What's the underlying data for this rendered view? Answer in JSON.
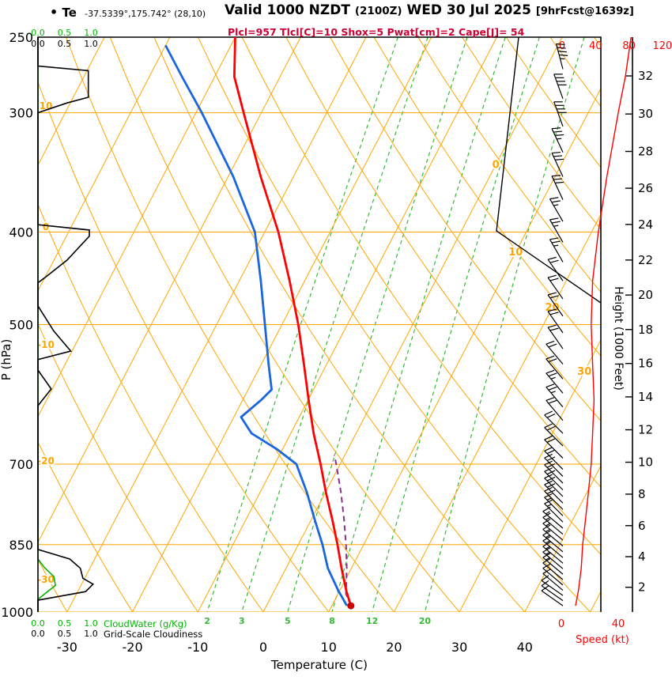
{
  "header": {
    "bullet": "•",
    "station": "Te",
    "coords": "-37.5339°,175.742° (28,10)",
    "valid": "Valid 1000 NZDT",
    "zulu": "(2100Z)",
    "date": "WED 30 Jul 2025",
    "fcst": "[9hrFcst@1639z]",
    "params": "Plcl=957 Tlcl[C]=10 Shox=5 Pwat[cm]=2 Cape[J]= 54"
  },
  "axes": {
    "pressure_title": "P (hPa)",
    "pressure_ticks": [
      250,
      300,
      400,
      500,
      700,
      850,
      1000
    ],
    "temp_title": "Temperature (C)",
    "temp_ticks": [
      -30,
      -20,
      -10,
      0,
      10,
      20,
      30,
      40
    ],
    "height_title": "Height (1000 Feet)",
    "height_ticks": [
      2,
      4,
      6,
      8,
      10,
      12,
      14,
      16,
      18,
      20,
      22,
      24,
      26,
      28,
      30,
      32
    ],
    "speed_title": "Speed (kt)",
    "speed_ticks_bottom": [
      0,
      40
    ],
    "speed_ticks_top": [
      0,
      40,
      80,
      120
    ],
    "cloud_scale": [
      "0.0",
      "0.5",
      "1.0"
    ],
    "cloudwater_title": "CloudWater (g/Kg)",
    "cloudiness_title": "Grid-Scale Cloudiness"
  },
  "grid": {
    "isotherms": {
      "min": -120,
      "max": 60,
      "step": 10,
      "labels": [
        {
          "t": 0,
          "p": 340
        },
        {
          "t": 10,
          "p": 420
        },
        {
          "t": 20,
          "p": 480
        },
        {
          "t": 30,
          "p": 560
        }
      ]
    },
    "dry_adiabats": {
      "min": -40,
      "max": 200,
      "step": 10,
      "labels": [
        -30,
        -20,
        -10,
        0,
        10
      ]
    },
    "mixing_ratio_lines": [
      2,
      3,
      5,
      8,
      12,
      20
    ]
  },
  "colors": {
    "grid_orange": "#ffa500",
    "mixing_green": "#33bb33",
    "cloud_green": "#00b400",
    "temp_red": "#ff0000",
    "dewpoint_blue": "#1a66e0",
    "parcel_purple": "#8b2d8b",
    "params_red": "#cc0033",
    "speed_red": "#ff0000",
    "barb_black": "#000000"
  },
  "chart_data": {
    "type": "line",
    "subtype": "skewt_log_p_sounding",
    "title": "Valid 1000 NZDT (2100Z) WED 30 Jul 2025",
    "location": "Te -37.5339°,175.742° (28,10)",
    "xlabel": "Temperature (C)",
    "ylabel": "P (hPa)",
    "pressure_range_hpa": [
      250,
      1000
    ],
    "temp_axis_range_c": [
      -35,
      45
    ],
    "indices": {
      "Plcl": 957,
      "Tlcl_C": 10,
      "Shox": 5,
      "Pwat_cm": 2,
      "Cape_J": 54
    },
    "temperature_c": [
      [
        985,
        12.9
      ],
      [
        950,
        11.0
      ],
      [
        900,
        8.5
      ],
      [
        850,
        6.0
      ],
      [
        800,
        3.2
      ],
      [
        750,
        0.1
      ],
      [
        700,
        -3.0
      ],
      [
        650,
        -6.5
      ],
      [
        600,
        -9.9
      ],
      [
        550,
        -13.5
      ],
      [
        500,
        -17.5
      ],
      [
        450,
        -22.3
      ],
      [
        400,
        -27.9
      ],
      [
        350,
        -35.0
      ],
      [
        300,
        -42.7
      ],
      [
        275,
        -47.0
      ],
      [
        250,
        -50.0
      ]
    ],
    "dewpoint_c": [
      [
        985,
        12.3
      ],
      [
        950,
        9.8
      ],
      [
        900,
        6.4
      ],
      [
        850,
        3.7
      ],
      [
        800,
        0.5
      ],
      [
        750,
        -2.8
      ],
      [
        700,
        -6.7
      ],
      [
        675,
        -10.9
      ],
      [
        650,
        -16.0
      ],
      [
        625,
        -18.9
      ],
      [
        600,
        -17.2
      ],
      [
        585,
        -16.4
      ],
      [
        550,
        -18.9
      ],
      [
        500,
        -22.6
      ],
      [
        450,
        -26.7
      ],
      [
        400,
        -31.5
      ],
      [
        350,
        -39.2
      ],
      [
        300,
        -49.1
      ],
      [
        275,
        -55.0
      ],
      [
        255,
        -60.0
      ]
    ],
    "parcel_c": [
      [
        985,
        12.9
      ],
      [
        957,
        11.2
      ],
      [
        900,
        9.3
      ],
      [
        850,
        7.3
      ],
      [
        800,
        5.0
      ],
      [
        750,
        2.4
      ],
      [
        700,
        -0.6
      ],
      [
        685,
        -1.6
      ]
    ],
    "surface_point": {
      "p": 985,
      "t": 12.9
    },
    "speed_profile_kt": [
      [
        985,
        10
      ],
      [
        950,
        12
      ],
      [
        900,
        14
      ],
      [
        850,
        15
      ],
      [
        800,
        17
      ],
      [
        750,
        19
      ],
      [
        700,
        21
      ],
      [
        650,
        22
      ],
      [
        600,
        23
      ],
      [
        550,
        22
      ],
      [
        500,
        21
      ],
      [
        450,
        22
      ],
      [
        400,
        26
      ],
      [
        350,
        32
      ],
      [
        300,
        40
      ],
      [
        275,
        45
      ],
      [
        250,
        49
      ]
    ],
    "wind_barbs_p_kt_dir": [
      [
        985,
        10,
        305
      ],
      [
        973,
        10,
        305
      ],
      [
        961,
        11,
        305
      ],
      [
        949,
        12,
        310
      ],
      [
        937,
        12,
        310
      ],
      [
        925,
        12,
        310
      ],
      [
        913,
        13,
        310
      ],
      [
        901,
        13,
        310
      ],
      [
        889,
        14,
        310
      ],
      [
        877,
        14,
        310
      ],
      [
        865,
        14,
        310
      ],
      [
        853,
        15,
        310
      ],
      [
        841,
        15,
        310
      ],
      [
        829,
        16,
        310
      ],
      [
        817,
        16,
        310
      ],
      [
        805,
        17,
        315
      ],
      [
        793,
        17,
        315
      ],
      [
        781,
        18,
        315
      ],
      [
        769,
        18,
        315
      ],
      [
        757,
        19,
        315
      ],
      [
        745,
        19,
        315
      ],
      [
        733,
        20,
        315
      ],
      [
        721,
        20,
        315
      ],
      [
        709,
        21,
        315
      ],
      [
        690,
        21,
        315
      ],
      [
        670,
        22,
        315
      ],
      [
        650,
        22,
        315
      ],
      [
        630,
        22,
        320
      ],
      [
        610,
        23,
        320
      ],
      [
        590,
        23,
        320
      ],
      [
        570,
        22,
        320
      ],
      [
        550,
        22,
        320
      ],
      [
        530,
        22,
        325
      ],
      [
        510,
        21,
        325
      ],
      [
        490,
        21,
        325
      ],
      [
        470,
        21,
        325
      ],
      [
        450,
        22,
        325
      ],
      [
        430,
        24,
        330
      ],
      [
        410,
        25,
        330
      ],
      [
        390,
        27,
        330
      ],
      [
        370,
        30,
        335
      ],
      [
        350,
        32,
        335
      ],
      [
        330,
        35,
        335
      ],
      [
        310,
        38,
        340
      ],
      [
        290,
        42,
        340
      ],
      [
        270,
        45,
        345
      ]
    ],
    "grid_scale_cloudiness": [
      [
        250,
        0
      ],
      [
        268,
        0
      ],
      [
        271,
        0.95
      ],
      [
        289,
        0.95
      ],
      [
        293,
        0.55
      ],
      [
        300,
        0
      ],
      [
        393,
        0
      ],
      [
        398,
        0.97
      ],
      [
        404,
        0.97
      ],
      [
        428,
        0.55
      ],
      [
        447,
        0.12
      ],
      [
        452,
        0
      ],
      [
        478,
        0
      ],
      [
        508,
        0.3
      ],
      [
        533,
        0.62
      ],
      [
        544,
        0
      ],
      [
        558,
        0
      ],
      [
        584,
        0.25
      ],
      [
        608,
        0
      ],
      [
        860,
        0
      ],
      [
        880,
        0.6
      ],
      [
        900,
        0.8
      ],
      [
        922,
        0.85
      ],
      [
        935,
        1.04
      ],
      [
        952,
        0.9
      ],
      [
        972,
        0
      ],
      [
        1000,
        0
      ]
    ],
    "cloud_water": [
      [
        250,
        0
      ],
      [
        880,
        0
      ],
      [
        898,
        0.12
      ],
      [
        918,
        0.3
      ],
      [
        938,
        0.33
      ],
      [
        958,
        0.12
      ],
      [
        970,
        0
      ],
      [
        1000,
        0
      ]
    ]
  }
}
